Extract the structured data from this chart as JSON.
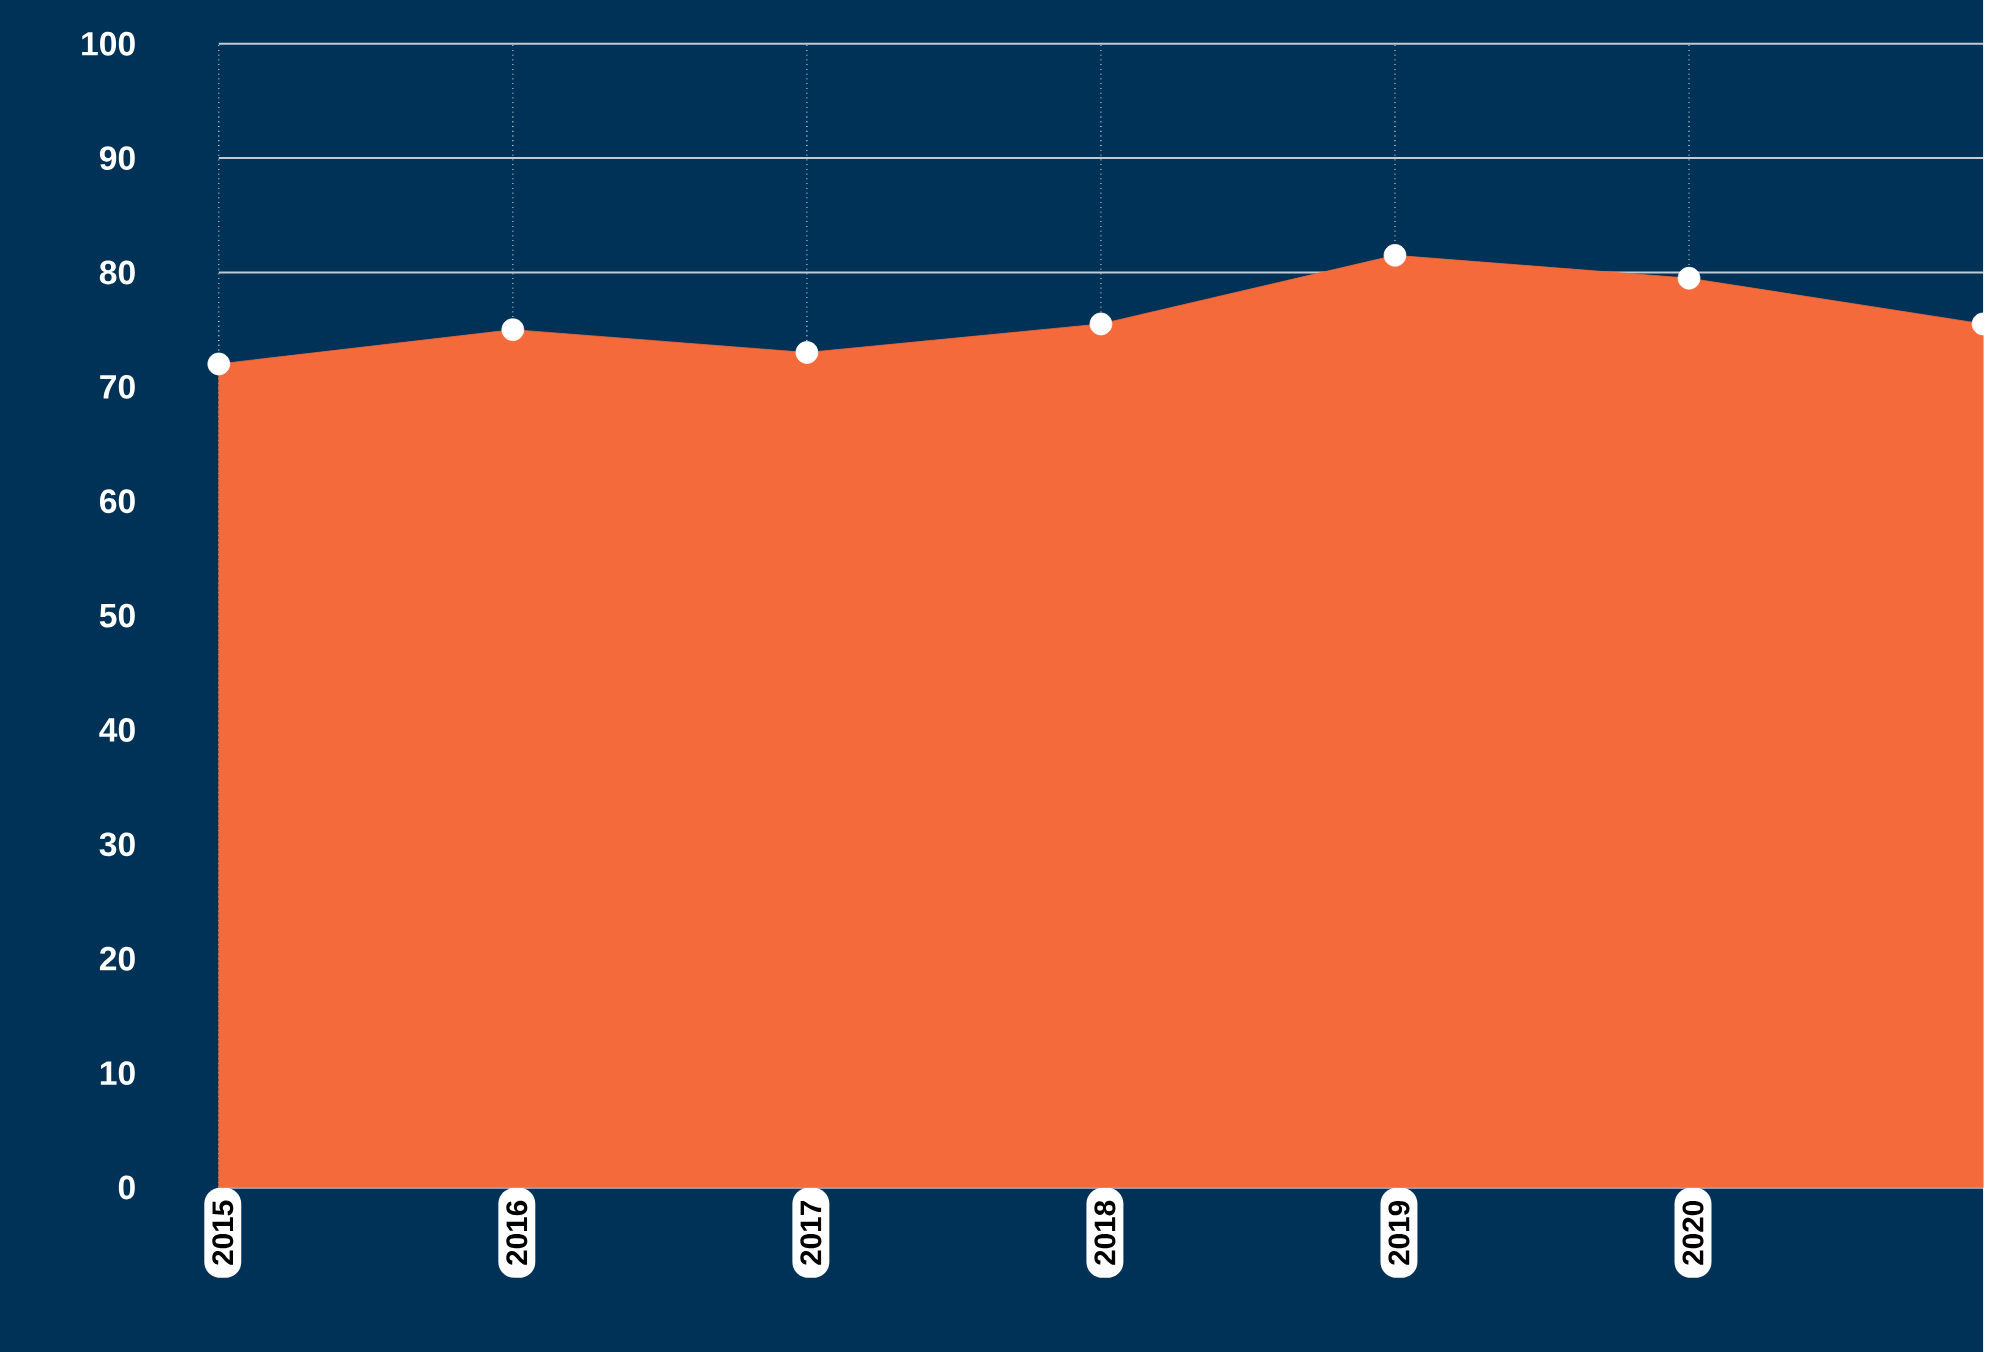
{
  "chart_data": {
    "type": "area",
    "categories": [
      "2015",
      "2016",
      "2017",
      "2018",
      "2019",
      "2020",
      null
    ],
    "values": [
      72,
      75,
      73,
      75.5,
      81.5,
      79.5,
      75.5
    ],
    "color": "#f46a3a",
    "ylim": [
      0,
      100
    ],
    "yticks": [
      0,
      10,
      20,
      30,
      40,
      50,
      60,
      70,
      80,
      90,
      100
    ],
    "grid": true,
    "marker": "circle"
  }
}
